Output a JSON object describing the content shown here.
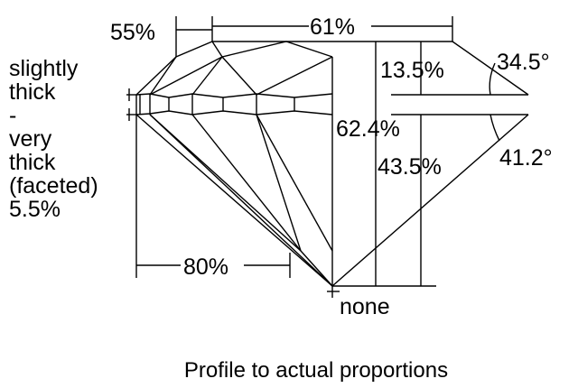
{
  "girdle_label": [
    "slightly",
    "thick",
    "-",
    "very",
    "thick",
    "(faceted)",
    "5.5%"
  ],
  "crown_height": "13.5%",
  "crown_angle": "34.5°",
  "total_depth": "62.4%",
  "pavilion_depth": "43.5%",
  "pavilion_angle": "41.2°",
  "table": "61%",
  "star_length": "55%",
  "lower_half_length": "80%",
  "culet": "none",
  "caption": "Profile to actual proportions"
}
